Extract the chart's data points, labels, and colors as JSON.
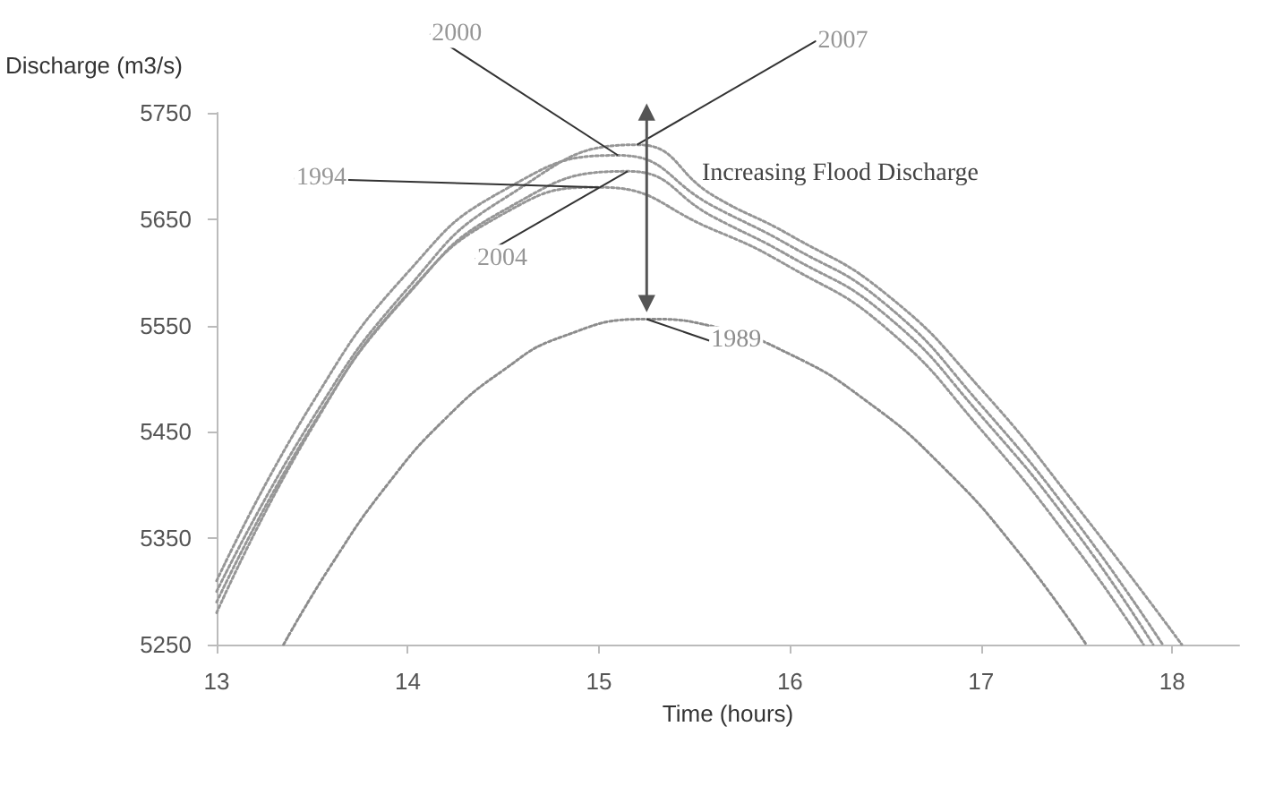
{
  "chart_data": {
    "type": "line",
    "xlabel": "Time (hours)",
    "ylabel": "Discharge (m3/s)",
    "xlim": [
      13,
      18.35
    ],
    "xticks": [
      13,
      14,
      15,
      16,
      17,
      18
    ],
    "ylim": [
      5250,
      5750
    ],
    "yticks": [
      5250,
      5350,
      5450,
      5550,
      5650,
      5750
    ],
    "grid": false,
    "legend": false,
    "marker": "none",
    "line_style": "dotted",
    "annotations": [
      "Increasing Flood Discharge"
    ],
    "series": [
      {
        "name": "1989",
        "color": "#8c8c8c",
        "x": [
          13.35,
          13.6,
          13.9,
          14.2,
          14.5,
          14.8,
          15.25,
          15.6,
          16.0,
          16.4,
          16.8,
          17.2,
          17.55
        ],
        "values": [
          5250,
          5325,
          5402,
          5463,
          5508,
          5539,
          5556,
          5549,
          5523,
          5479,
          5417,
          5336,
          5250
        ]
      },
      {
        "name": "1994",
        "color": "#969696",
        "x": [
          13.0,
          13.5,
          14.0,
          14.5,
          15.0,
          15.6,
          16.0,
          16.5,
          17.0,
          17.5,
          17.85
        ],
        "values": [
          5280,
          5454,
          5580,
          5655,
          5680,
          5640,
          5605,
          5548,
          5452,
          5340,
          5250
        ]
      },
      {
        "name": "2000",
        "color": "#969696",
        "x": [
          13.0,
          13.5,
          14.0,
          14.5,
          15.1,
          15.6,
          16.0,
          16.5,
          17.0,
          17.5,
          17.95
        ],
        "values": [
          5310,
          5477,
          5600,
          5677,
          5710,
          5662,
          5625,
          5570,
          5475,
          5365,
          5250
        ]
      },
      {
        "name": "2004",
        "color": "#969696",
        "x": [
          13.0,
          13.5,
          14.0,
          14.5,
          15.15,
          15.6,
          16.0,
          16.5,
          17.0,
          17.5,
          17.9
        ],
        "values": [
          5290,
          5456,
          5579,
          5658,
          5695,
          5652,
          5615,
          5560,
          5465,
          5355,
          5250
        ]
      },
      {
        "name": "2007",
        "color": "#969696",
        "x": [
          13.0,
          13.5,
          14.0,
          14.5,
          15.2,
          15.6,
          16.0,
          16.5,
          17.0,
          17.5,
          18.05
        ],
        "values": [
          5300,
          5462,
          5585,
          5669,
          5720,
          5672,
          5635,
          5580,
          5490,
          5380,
          5250
        ]
      }
    ]
  }
}
